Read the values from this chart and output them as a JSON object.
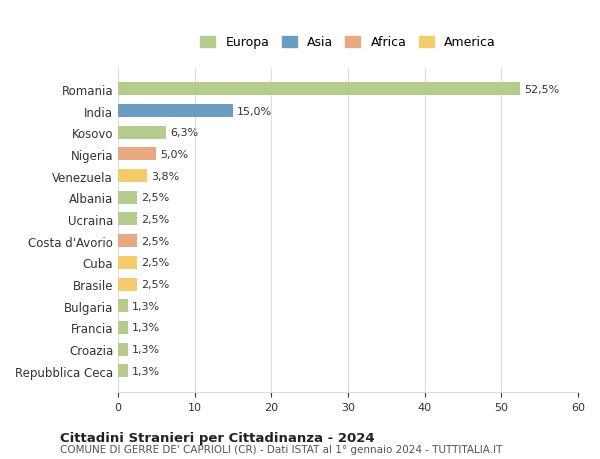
{
  "countries": [
    "Romania",
    "India",
    "Kosovo",
    "Nigeria",
    "Venezuela",
    "Albania",
    "Ucraina",
    "Costa d'Avorio",
    "Cuba",
    "Brasile",
    "Bulgaria",
    "Francia",
    "Croazia",
    "Repubblica Ceca"
  ],
  "values": [
    52.5,
    15.0,
    6.3,
    5.0,
    3.8,
    2.5,
    2.5,
    2.5,
    2.5,
    2.5,
    1.3,
    1.3,
    1.3,
    1.3
  ],
  "labels": [
    "52,5%",
    "15,0%",
    "6,3%",
    "5,0%",
    "3,8%",
    "2,5%",
    "2,5%",
    "2,5%",
    "2,5%",
    "2,5%",
    "1,3%",
    "1,3%",
    "1,3%",
    "1,3%"
  ],
  "colors": [
    "#b5cc8e",
    "#6b9dc2",
    "#b5cc8e",
    "#e8a882",
    "#f5cc6b",
    "#b5cc8e",
    "#b5cc8e",
    "#e8a882",
    "#f5cc6b",
    "#f5cc6b",
    "#b5cc8e",
    "#b5cc8e",
    "#b5cc8e",
    "#b5cc8e"
  ],
  "legend_labels": [
    "Europa",
    "Asia",
    "Africa",
    "America"
  ],
  "legend_colors": [
    "#b5cc8e",
    "#6b9dc2",
    "#e8a882",
    "#f5cc6b"
  ],
  "title": "Cittadini Stranieri per Cittadinanza - 2024",
  "subtitle": "COMUNE DI GERRE DE' CAPRIOLI (CR) - Dati ISTAT al 1° gennaio 2024 - TUTTITALIA.IT",
  "xlim": [
    0,
    60
  ],
  "xticks": [
    0,
    10,
    20,
    30,
    40,
    50,
    60
  ],
  "background_color": "#ffffff",
  "grid_color": "#dddddd"
}
